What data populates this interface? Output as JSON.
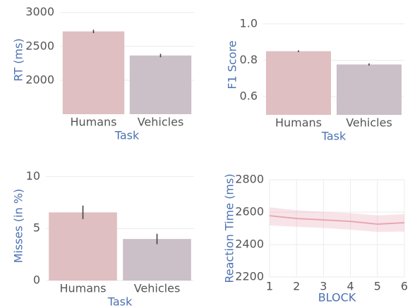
{
  "chart_data": [
    {
      "type": "bar",
      "xlabel": "Task",
      "ylabel": "RT (ms)",
      "categories": [
        "Humans",
        "Vehicles"
      ],
      "values": [
        2720,
        2365
      ],
      "errors": [
        25,
        25
      ],
      "colors": [
        "#dfbfc1",
        "#cbbfc8"
      ],
      "ylim": [
        1500,
        3100
      ],
      "yticks": [
        2000,
        2500,
        3000
      ],
      "grid": true
    },
    {
      "type": "bar",
      "xlabel": "Task",
      "ylabel": "F1 Score",
      "categories": [
        "Humans",
        "Vehicles"
      ],
      "values": [
        0.85,
        0.777
      ],
      "errors": [
        0.005,
        0.006
      ],
      "colors": [
        "#dfbfc1",
        "#cbbfc8"
      ],
      "ylim": [
        0.5,
        1.05
      ],
      "yticks": [
        {
          "value": 0.6,
          "label": "0.6"
        },
        {
          "value": 0.8,
          "label": "0.8"
        },
        {
          "value": 1.0,
          "label": "1.0"
        }
      ],
      "grid": true
    },
    {
      "type": "bar",
      "xlabel": "Task",
      "ylabel": "Misses (in %)",
      "categories": [
        "Humans",
        "Vehicles"
      ],
      "values": [
        6.55,
        3.99
      ],
      "errors": [
        0.65,
        0.5
      ],
      "colors": [
        "#dfbfc1",
        "#cbbfc8"
      ],
      "ylim": [
        0,
        10.5
      ],
      "yticks": [
        0,
        5,
        10
      ],
      "grid": true
    },
    {
      "type": "line",
      "xlabel": "BLOCK",
      "ylabel": "Reaction Time (ms)",
      "x": [
        1,
        2,
        3,
        4,
        5,
        6
      ],
      "values": [
        2578,
        2561,
        2552,
        2543,
        2526,
        2535
      ],
      "lower": [
        2518,
        2510,
        2502,
        2492,
        2478,
        2480
      ],
      "upper": [
        2630,
        2612,
        2602,
        2594,
        2580,
        2588
      ],
      "color": "#e8a7b3",
      "xlim": [
        1,
        6
      ],
      "xticks": [
        1,
        2,
        3,
        4,
        5,
        6
      ],
      "ylim": [
        2200,
        2800
      ],
      "yticks": [
        2200,
        2400,
        2600,
        2800
      ],
      "grid": true
    }
  ]
}
